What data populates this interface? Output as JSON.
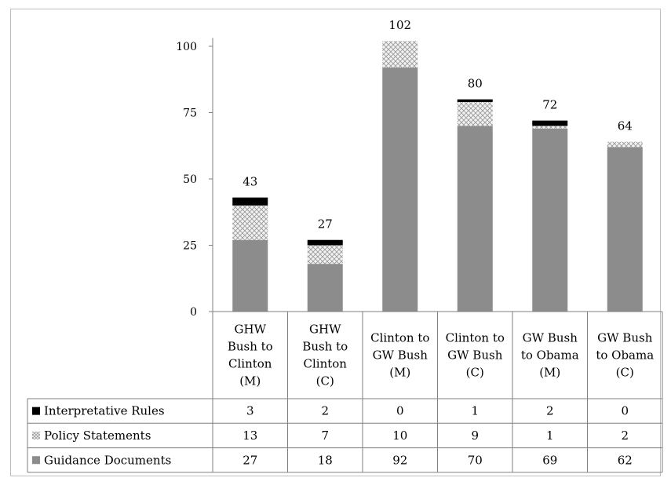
{
  "chart_data": {
    "type": "bar",
    "stacked": true,
    "categories": [
      [
        "GHW",
        "Bush to",
        "Clinton",
        "(M)"
      ],
      [
        "GHW",
        "Bush to",
        "Clinton",
        "(C)"
      ],
      [
        "Clinton to",
        "GW Bush",
        "(M)"
      ],
      [
        "Clinton to",
        "GW Bush",
        "(C)"
      ],
      [
        "GW Bush",
        "to Obama",
        "(M)"
      ],
      [
        "GW Bush",
        "to Obama",
        "(C)"
      ]
    ],
    "series": [
      {
        "name": "Guidance Documents",
        "values": [
          27,
          18,
          92,
          70,
          69,
          62
        ],
        "color": "#8c8c8c",
        "pattern": "solid"
      },
      {
        "name": "Policy Statements",
        "values": [
          13,
          7,
          10,
          9,
          1,
          2
        ],
        "color": "#d9d9d9",
        "pattern": "crosshatch"
      },
      {
        "name": "Interpretative Rules",
        "values": [
          3,
          2,
          0,
          1,
          2,
          0
        ],
        "color": "#000000",
        "pattern": "solid"
      }
    ],
    "table_order": [
      "Interpretative Rules",
      "Policy Statements",
      "Guidance Documents"
    ],
    "totals": [
      43,
      27,
      102,
      80,
      72,
      64
    ],
    "yticks": [
      0,
      25,
      50,
      75,
      100
    ],
    "ylim": [
      0,
      102
    ],
    "grid": false,
    "legend": "data-table"
  }
}
